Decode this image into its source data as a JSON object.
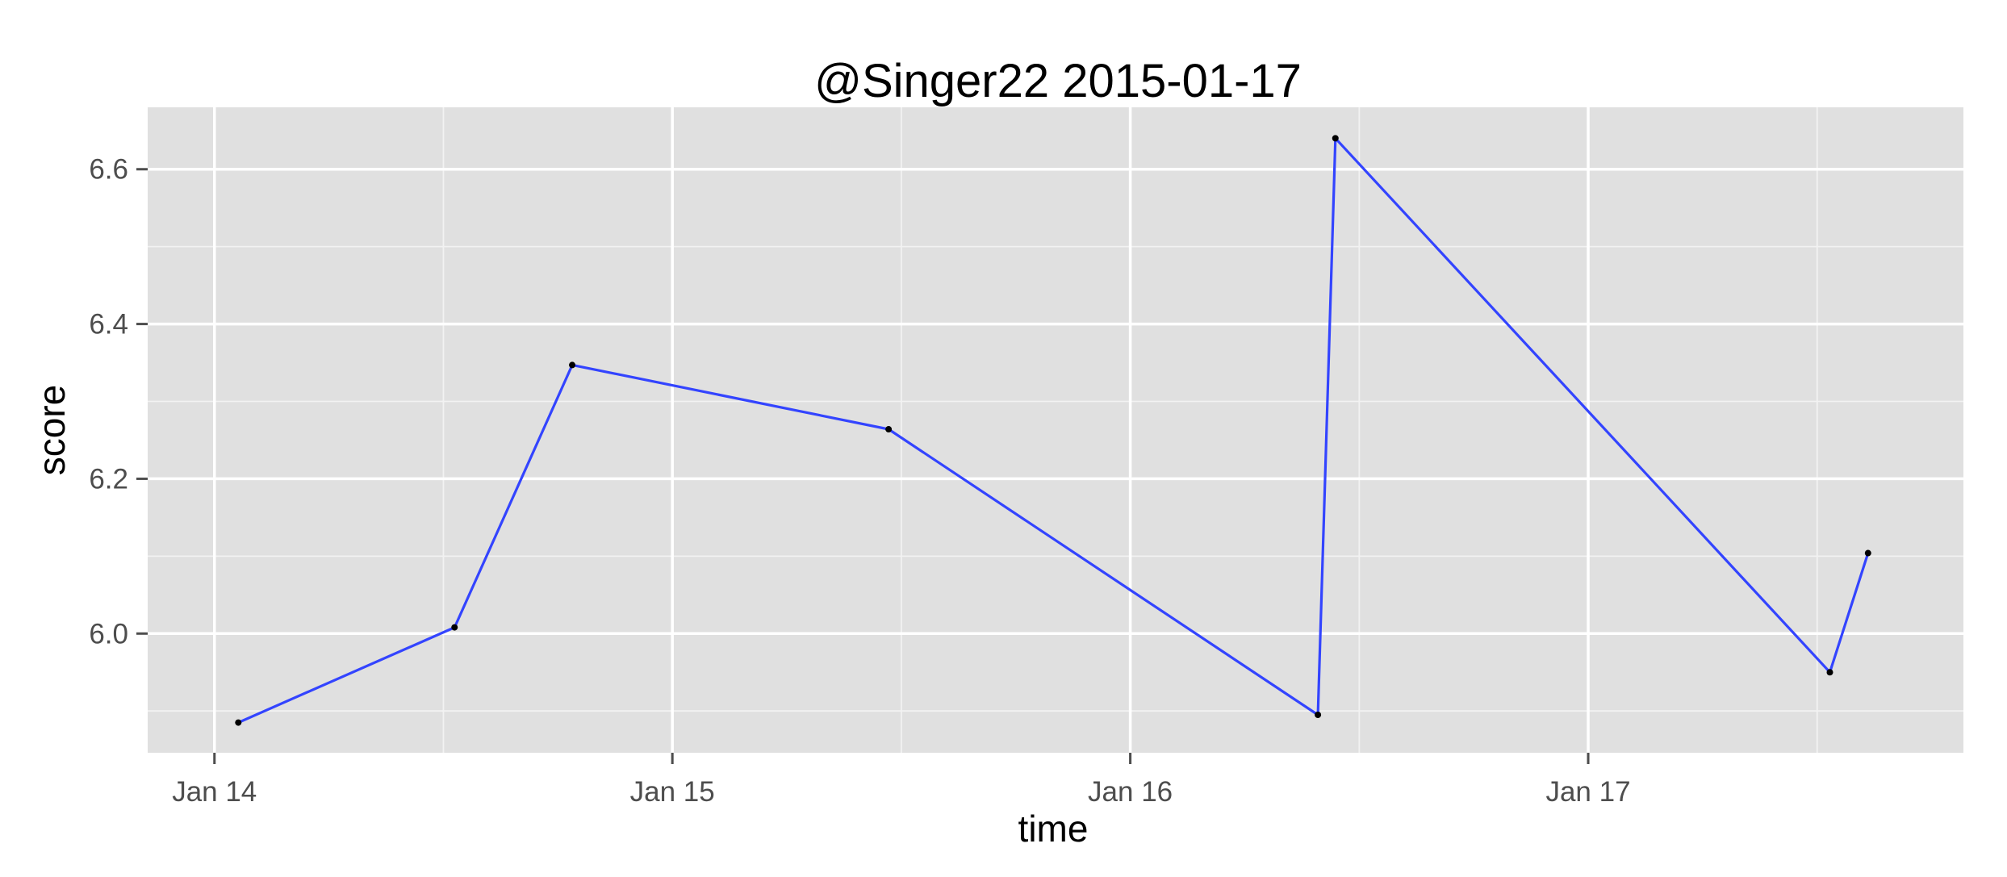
{
  "chart_data": {
    "type": "line",
    "title": "@Singer22 2015-01-17",
    "xlabel": "time",
    "ylabel": "score",
    "x_ticks": [
      {
        "value": "2015-01-14T00:00",
        "label": "Jan 14"
      },
      {
        "value": "2015-01-15T00:00",
        "label": "Jan 15"
      },
      {
        "value": "2015-01-16T00:00",
        "label": "Jan 16"
      },
      {
        "value": "2015-01-17T00:00",
        "label": "Jan 17"
      }
    ],
    "y_ticks": [
      {
        "value": 6.0,
        "label": "6.0"
      },
      {
        "value": 6.2,
        "label": "6.2"
      },
      {
        "value": 6.4,
        "label": "6.4"
      },
      {
        "value": 6.6,
        "label": "6.6"
      }
    ],
    "xlim": [
      "2015-01-13T20:30",
      "2015-01-17T19:40"
    ],
    "ylim": [
      5.846,
      6.68
    ],
    "grid": true,
    "series": [
      {
        "color": "#3344ff",
        "points": [
          {
            "x": "2015-01-14T01:15",
            "y": 5.885
          },
          {
            "x": "2015-01-14T12:35",
            "y": 6.008
          },
          {
            "x": "2015-01-14T18:45",
            "y": 6.347
          },
          {
            "x": "2015-01-15T11:20",
            "y": 6.264
          },
          {
            "x": "2015-01-16T09:50",
            "y": 5.895
          },
          {
            "x": "2015-01-16T10:45",
            "y": 6.64
          },
          {
            "x": "2015-01-17T12:40",
            "y": 5.95
          },
          {
            "x": "2015-01-17T14:40",
            "y": 6.104
          }
        ]
      }
    ]
  }
}
